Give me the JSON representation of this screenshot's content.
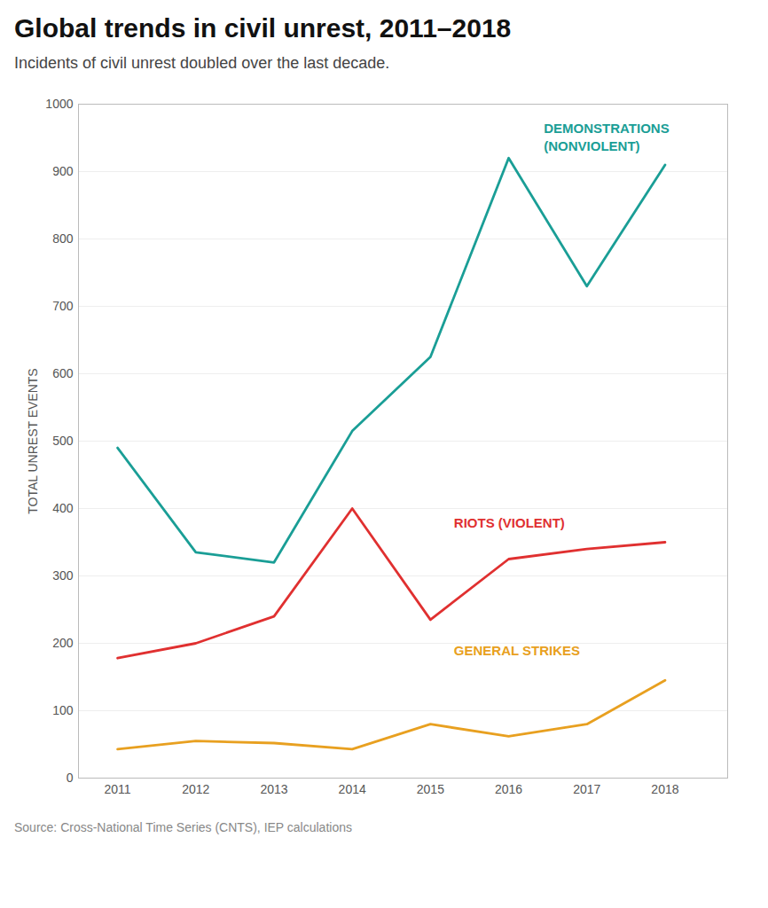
{
  "chart_data": {
    "type": "line",
    "title": "Global trends in civil unrest, 2011–2018",
    "subtitle": "Incidents of civil unrest doubled over the last decade.",
    "source": "Source: Cross-National Time Series (CNTS), IEP calculations",
    "x": [
      2011,
      2012,
      2013,
      2014,
      2015,
      2016,
      2017,
      2018
    ],
    "xlim": [
      2010.5,
      2018.8
    ],
    "xticks": [
      2011,
      2012,
      2013,
      2014,
      2015,
      2016,
      2017,
      2018
    ],
    "ylabel": "TOTAL UNREST EVENTS",
    "ylim": [
      0,
      1000
    ],
    "yticks": [
      0,
      100,
      200,
      300,
      400,
      500,
      600,
      700,
      800,
      900,
      1000
    ],
    "grid": true,
    "series": [
      {
        "name": "DEMONSTRATIONS\n(NONVIOLENT)",
        "color": "#1a9e96",
        "values": [
          490,
          335,
          320,
          515,
          625,
          920,
          730,
          910
        ]
      },
      {
        "name": "RIOTS (VIOLENT)",
        "color": "#e03030",
        "values": [
          178,
          200,
          240,
          400,
          235,
          325,
          340,
          350
        ]
      },
      {
        "name": "GENERAL STRIKES",
        "color": "#e8a020",
        "values": [
          43,
          55,
          52,
          43,
          80,
          62,
          80,
          145
        ]
      }
    ],
    "annotations": [
      {
        "text": "DEMONSTRATIONS\n(NONVIOLENT)",
        "x": 2016.45,
        "y": 975,
        "color": "#1a9e96"
      },
      {
        "text": "RIOTS (VIOLENT)",
        "x": 2015.3,
        "y": 390,
        "color": "#e03030"
      },
      {
        "text": "GENERAL STRIKES",
        "x": 2015.3,
        "y": 200,
        "color": "#e8a020"
      }
    ]
  }
}
